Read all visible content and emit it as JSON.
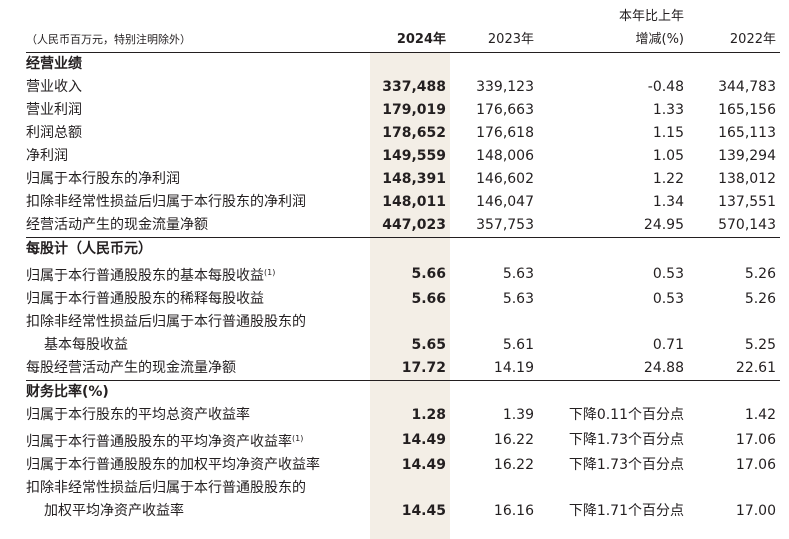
{
  "header": {
    "unit_note": "（人民币百万元，特别注明除外）",
    "col_2024": "2024年",
    "col_2023": "2023年",
    "col_change_line1": "本年比上年",
    "col_change_line2": "增减(%)",
    "col_2022": "2022年"
  },
  "sections": [
    {
      "title": "经营业绩",
      "rows": [
        {
          "label": "营业收入",
          "v2024": "337,488",
          "v2023": "339,123",
          "change": "-0.48",
          "v2022": "344,783"
        },
        {
          "label": "营业利润",
          "v2024": "179,019",
          "v2023": "176,663",
          "change": "1.33",
          "v2022": "165,156"
        },
        {
          "label": "利润总额",
          "v2024": "178,652",
          "v2023": "176,618",
          "change": "1.15",
          "v2022": "165,113"
        },
        {
          "label": "净利润",
          "v2024": "149,559",
          "v2023": "148,006",
          "change": "1.05",
          "v2022": "139,294"
        },
        {
          "label": "归属于本行股东的净利润",
          "v2024": "148,391",
          "v2023": "146,602",
          "change": "1.22",
          "v2022": "138,012"
        },
        {
          "label": "扣除非经常性损益后归属于本行股东的净利润",
          "v2024": "148,011",
          "v2023": "146,047",
          "change": "1.34",
          "v2022": "137,551"
        },
        {
          "label": "经营活动产生的现金流量净额",
          "v2024": "447,023",
          "v2023": "357,753",
          "change": "24.95",
          "v2022": "570,143"
        }
      ]
    },
    {
      "title": "每股计（人民币元）",
      "rows": [
        {
          "label": "归属于本行普通股股东的基本每股收益",
          "note": "(1)",
          "v2024": "5.66",
          "v2023": "5.63",
          "change": "0.53",
          "v2022": "5.26"
        },
        {
          "label": "归属于本行普通股股东的稀释每股收益",
          "v2024": "5.66",
          "v2023": "5.63",
          "change": "0.53",
          "v2022": "5.26"
        },
        {
          "label": "扣除非经常性损益后归属于本行普通股股东的",
          "label2": "基本每股收益",
          "v2024": "5.65",
          "v2023": "5.61",
          "change": "0.71",
          "v2022": "5.25"
        },
        {
          "label": "每股经营活动产生的现金流量净额",
          "v2024": "17.72",
          "v2023": "14.19",
          "change": "24.88",
          "v2022": "22.61"
        }
      ]
    },
    {
      "title": "财务比率(%)",
      "rows": [
        {
          "label": "归属于本行股东的平均总资产收益率",
          "v2024": "1.28",
          "v2023": "1.39",
          "change": "下降0.11个百分点",
          "v2022": "1.42"
        },
        {
          "label": "归属于本行普通股股东的平均净资产收益率",
          "note": "(1)",
          "v2024": "14.49",
          "v2023": "16.22",
          "change": "下降1.73个百分点",
          "v2022": "17.06"
        },
        {
          "label": "归属于本行普通股股东的加权平均净资产收益率",
          "v2024": "14.49",
          "v2023": "16.22",
          "change": "下降1.73个百分点",
          "v2022": "17.06"
        },
        {
          "label": "扣除非经常性损益后归属于本行普通股股东的",
          "label2": "加权平均净资产收益率",
          "v2024": "14.45",
          "v2023": "16.16",
          "change": "下降1.71个百分点",
          "v2022": "17.00"
        }
      ]
    }
  ],
  "colors": {
    "highlight_column": "#f3eee6",
    "text": "#231f20"
  }
}
